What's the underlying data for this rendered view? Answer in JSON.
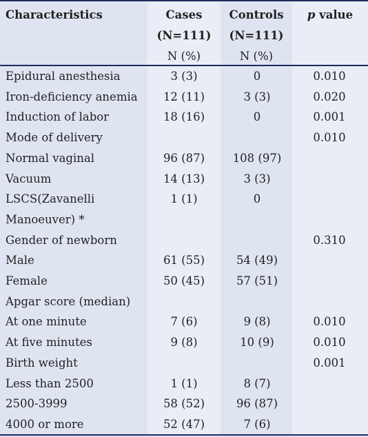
{
  "headers": {
    "characteristics": "Characteristics",
    "cases": [
      "Cases",
      "(N=111)",
      "N (%)"
    ],
    "controls": [
      "Controls",
      "(N=111)",
      "N (%)"
    ],
    "p_value_italic": "p",
    "p_value_rest": " value"
  },
  "rows": [
    {
      "label": "Epidural anesthesia",
      "cases": "3 (3)",
      "controls": "0",
      "p": "0.010"
    },
    {
      "label": "Iron-deficiency anemia",
      "cases": "12 (11)",
      "controls": "3 (3)",
      "p": "0.020"
    },
    {
      "label": "Induction of labor",
      "cases": "18 (16)",
      "controls": "0",
      "p": "0.001"
    },
    {
      "label": "Mode of delivery",
      "cases": "",
      "controls": "",
      "p": "0.010"
    },
    {
      "label": "Normal vaginal",
      "cases": "96 (87)",
      "controls": "108 (97)",
      "p": ""
    },
    {
      "label": "Vacuum",
      "cases": "14 (13)",
      "controls": "3 (3)",
      "p": ""
    },
    {
      "label": "LSCS(Zavanelli",
      "cases": "1 (1)",
      "controls": "0",
      "p": ""
    },
    {
      "label": "Manoeuver) *",
      "cases": "",
      "controls": "",
      "p": ""
    },
    {
      "label": "Gender of newborn",
      "cases": "",
      "controls": "",
      "p": "0.310"
    },
    {
      "label": "Male",
      "cases": "61 (55)",
      "controls": "54 (49)",
      "p": ""
    },
    {
      "label": "Female",
      "cases": "50 (45)",
      "controls": "57 (51)",
      "p": ""
    },
    {
      "label": "Apgar score (median)",
      "cases": "",
      "controls": "",
      "p": ""
    },
    {
      "label": "At one minute",
      "cases": "7 (6)",
      "controls": "9 (8)",
      "p": "0.010"
    },
    {
      "label": "At five minutes",
      "cases": "9 (8)",
      "controls": "10 (9)",
      "p": "0.010"
    },
    {
      "label": "Birth weight",
      "cases": "",
      "controls": "",
      "p": "0.001"
    },
    {
      "label": "Less than 2500",
      "cases": "1 (1)",
      "controls": "8 (7)",
      "p": ""
    },
    {
      "label": "2500-3999",
      "cases": "58 (52)",
      "controls": "96 (87)",
      "p": ""
    },
    {
      "label": "4000 or more",
      "cases": "52 (47)",
      "controls": "7 (6)",
      "p": ""
    }
  ]
}
